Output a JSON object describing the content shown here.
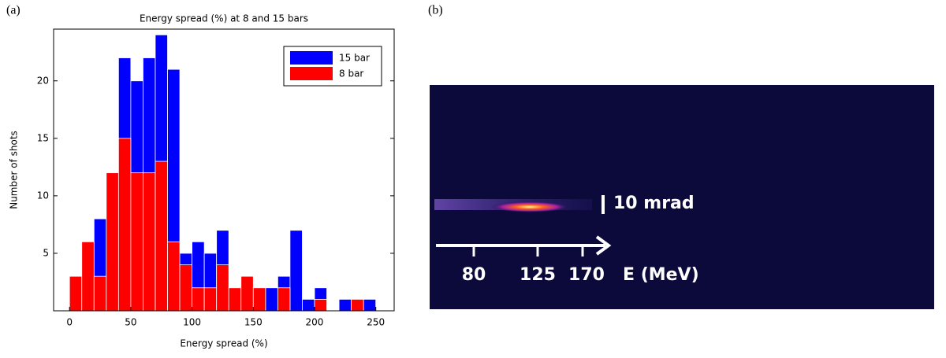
{
  "panels": [
    "(a)",
    "(b)"
  ],
  "chart_data": {
    "type": "histogram",
    "title": "Energy spread (%) at 8 and 15 bars",
    "x_label": "Energy spread (%)",
    "y_label": "Number of shots",
    "bins": [
      0,
      10,
      20,
      30,
      40,
      50,
      60,
      70,
      80,
      90,
      100,
      110,
      120,
      130,
      140,
      150,
      160,
      170,
      180,
      190,
      200,
      210,
      220,
      230,
      240,
      250
    ],
    "series": [
      {
        "name": "15 bar",
        "color": "#0000ff",
        "values": [
          0,
          0,
          8,
          0,
          22,
          20,
          22,
          24,
          21,
          5,
          6,
          5,
          7,
          0,
          0,
          0,
          2,
          3,
          7,
          1,
          2,
          0,
          1,
          0,
          1
        ]
      },
      {
        "name": "8 bar",
        "color": "#ff0000",
        "values": [
          3,
          6,
          3,
          12,
          15,
          12,
          12,
          13,
          6,
          4,
          2,
          2,
          4,
          2,
          3,
          2,
          0,
          2,
          0,
          0,
          1,
          0,
          0,
          1,
          0
        ]
      }
    ],
    "xlim": [
      -13,
      265
    ],
    "ylim": [
      0,
      24.5
    ],
    "xticks": [
      0,
      50,
      100,
      150,
      200,
      250
    ],
    "yticks": [
      5,
      10,
      15,
      20
    ],
    "legend": "upper right"
  },
  "image": {
    "labels": {
      "divergence": "10 mrad",
      "energy": "E (MeV)",
      "ticks": [
        "80",
        "125",
        "170"
      ]
    }
  }
}
